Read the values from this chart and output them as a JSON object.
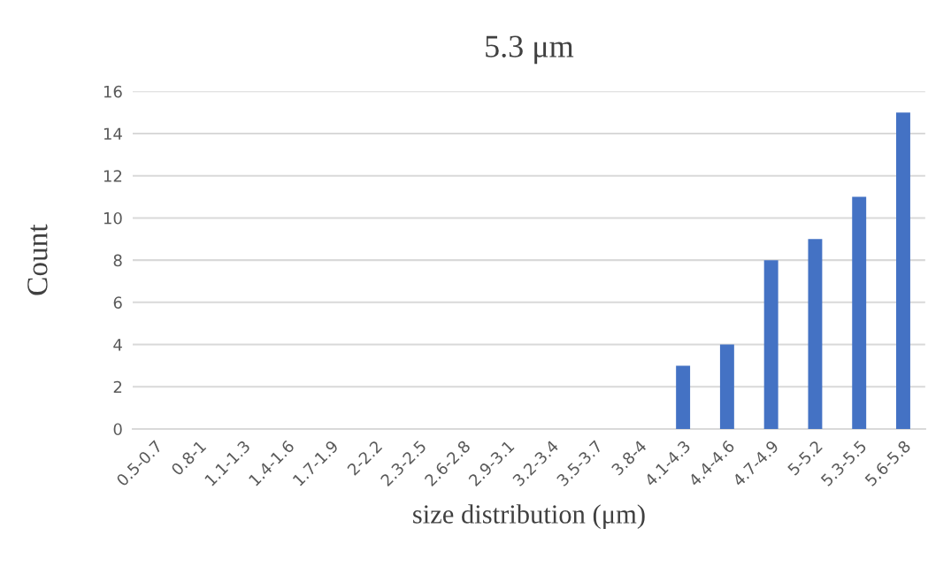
{
  "chart_data": {
    "type": "bar",
    "title": "5.3 μm",
    "xlabel": "size distribution (μm)",
    "ylabel": "Count",
    "categories": [
      "0.5-0.7",
      "0.8-1",
      "1.1-1.3",
      "1.4-1.6",
      "1.7-1.9",
      "2-2.2",
      "2.3-2.5",
      "2.6-2.8",
      "2.9-3.1",
      "3.2-3.4",
      "3.5-3.7",
      "3.8-4",
      "4.1-4.3",
      "4.4-4.6",
      "4.7-4.9",
      "5-5.2",
      "5.3-5.5",
      "5.6-5.8"
    ],
    "values": [
      0,
      0,
      0,
      0,
      0,
      0,
      0,
      0,
      0,
      0,
      0,
      0,
      3,
      4,
      8,
      9,
      11,
      15
    ],
    "color": "#4472c4",
    "ylim": [
      0,
      16
    ],
    "yticks": [
      0,
      2,
      4,
      6,
      8,
      10,
      12,
      14,
      16
    ],
    "grid": "y"
  }
}
